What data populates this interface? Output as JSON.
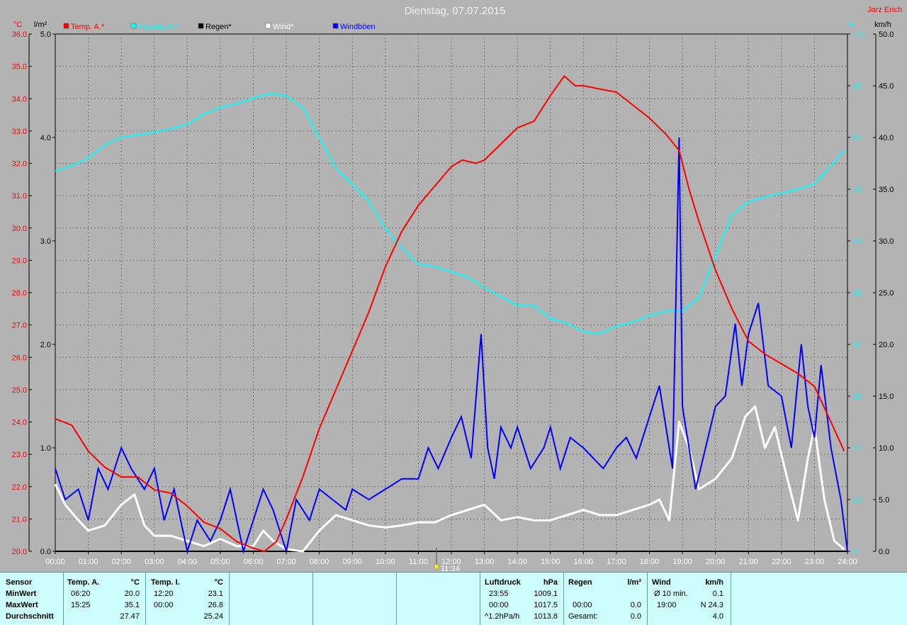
{
  "title": "Dienstag, 07.07.2015",
  "author": "Jarz Erich",
  "axes": {
    "left_temp_unit": "°C",
    "left_rain_unit": "l/m²",
    "right_pct_unit": "%",
    "right_kmh_unit": "km/h",
    "temp_ticks": [
      "20.0",
      "21.0",
      "22.0",
      "23.0",
      "24.0",
      "25.0",
      "26.0",
      "27.0",
      "28.0",
      "29.0",
      "30.0",
      "31.0",
      "32.0",
      "33.0",
      "34.0",
      "35.0",
      "36.0"
    ],
    "rain_ticks": [
      "0.0",
      "1.0",
      "2.0",
      "3.0",
      "4.0",
      "5.0"
    ],
    "pct_ticks": [
      "0",
      "10",
      "20",
      "30",
      "40",
      "50",
      "60",
      "70",
      "80",
      "90",
      "100"
    ],
    "kmh_ticks": [
      "0.0",
      "5.0",
      "10.0",
      "15.0",
      "20.0",
      "25.0",
      "30.0",
      "35.0",
      "40.0",
      "45.0",
      "50.0"
    ],
    "time_ticks": [
      "00:00",
      "01:00",
      "02:00",
      "03:00",
      "04:00",
      "05:00",
      "06:00",
      "07:00",
      "08:00",
      "09:00",
      "10:00",
      "11:00",
      "12:00",
      "13:00",
      "14:00",
      "15:00",
      "16:00",
      "17:00",
      "18:00",
      "19:00",
      "20:00",
      "21:00",
      "22:00",
      "23:00",
      "24:00"
    ],
    "marker": "11:34"
  },
  "legend": [
    {
      "label": "Temp. A.*",
      "color": "#ff0000"
    },
    {
      "label": "Feuchte A.*",
      "color": "#00ffff"
    },
    {
      "label": "Regen*",
      "color": "#000000"
    },
    {
      "label": "Wind*",
      "color": "#ffffff"
    },
    {
      "label": "Windböen",
      "color": "#0000ff"
    }
  ],
  "chart_data": {
    "type": "line",
    "title": "Dienstag, 07.07.2015",
    "x_unit": "hour",
    "xlim": [
      0,
      24
    ],
    "grid": true,
    "axes_ranges": {
      "temp_c": [
        20,
        36
      ],
      "rain_lm2": [
        0,
        5
      ],
      "humidity_pct": [
        0,
        100
      ],
      "wind_kmh": [
        0,
        50
      ]
    },
    "series": [
      {
        "name": "Temp. A.*",
        "color": "#ff0000",
        "axis": "temp_c",
        "x": [
          0,
          0.5,
          1,
          1.5,
          2,
          2.5,
          3,
          3.5,
          4,
          4.5,
          5,
          5.5,
          6,
          6.33,
          6.7,
          7,
          7.5,
          8,
          8.5,
          9,
          9.5,
          10,
          10.5,
          11,
          11.5,
          12,
          12.33,
          12.75,
          13,
          13.5,
          14,
          14.5,
          15,
          15.42,
          15.75,
          16,
          16.5,
          17,
          17.5,
          18,
          18.5,
          18.9,
          19.2,
          19.5,
          20,
          20.5,
          21,
          21.5,
          22,
          22.5,
          23,
          23.5,
          23.9
        ],
        "values": [
          24.1,
          23.9,
          23.1,
          22.6,
          22.3,
          22.3,
          21.9,
          21.8,
          21.4,
          20.9,
          20.7,
          20.3,
          20.1,
          20.0,
          20.3,
          21.0,
          22.3,
          23.8,
          25.0,
          26.2,
          27.4,
          28.8,
          29.9,
          30.7,
          31.3,
          31.9,
          32.1,
          32.0,
          32.1,
          32.6,
          33.1,
          33.3,
          34.1,
          34.7,
          34.4,
          34.4,
          34.3,
          34.2,
          33.8,
          33.4,
          32.9,
          32.4,
          31.2,
          30.2,
          28.7,
          27.5,
          26.5,
          26.1,
          25.8,
          25.5,
          25.1,
          24.0,
          23.1
        ]
      },
      {
        "name": "Feuchte A.*",
        "color": "#00ffff",
        "axis": "humidity_pct",
        "x": [
          0,
          0.5,
          1,
          1.5,
          2,
          2.5,
          3,
          3.5,
          4,
          4.5,
          5,
          5.5,
          6,
          6.5,
          7,
          7.5,
          8,
          8.5,
          9,
          9.5,
          10,
          10.5,
          11,
          11.5,
          12,
          12.5,
          13,
          13.5,
          14,
          14.5,
          15,
          15.5,
          16,
          16.5,
          17,
          17.5,
          18,
          18.5,
          19,
          19.5,
          20,
          20.5,
          21,
          21.5,
          22,
          22.5,
          23,
          23.5,
          23.9
        ],
        "values": [
          73.5,
          74.5,
          76,
          78.5,
          80,
          80.5,
          81,
          81.7,
          82.5,
          84.5,
          85.8,
          86.5,
          87.6,
          88.5,
          88,
          85.8,
          80,
          74,
          71,
          67.7,
          62.4,
          58.7,
          55.5,
          55,
          54,
          53,
          51,
          49.2,
          47.5,
          47.5,
          45,
          44.1,
          42.4,
          42.1,
          43.5,
          44.3,
          45.6,
          46.4,
          46.4,
          49,
          57,
          65,
          67.5,
          68.5,
          69.2,
          70,
          71,
          74.5,
          77.5
        ]
      },
      {
        "name": "Regen*",
        "color": "#000000",
        "axis": "rain_lm2",
        "x": [
          0,
          24
        ],
        "values": [
          0.0,
          0.0
        ]
      },
      {
        "name": "Wind*",
        "color": "#ffffff",
        "axis": "wind_kmh",
        "x": [
          0,
          0.3,
          0.7,
          1,
          1.5,
          2,
          2.4,
          2.7,
          3,
          3.5,
          4,
          4.5,
          5,
          5.5,
          6,
          6.3,
          6.6,
          7,
          7.5,
          8,
          8.5,
          9,
          9.5,
          10,
          10.5,
          11,
          11.5,
          12,
          12.5,
          13,
          13.5,
          14,
          14.5,
          15,
          15.5,
          16,
          16.5,
          17,
          17.5,
          18,
          18.3,
          18.6,
          18.9,
          19.2,
          19.5,
          20,
          20.5,
          20.9,
          21.2,
          21.5,
          21.8,
          22.1,
          22.5,
          22.8,
          23,
          23.3,
          23.6,
          23.9
        ],
        "values": [
          6.5,
          4.5,
          3,
          2,
          2.5,
          4.5,
          5.5,
          2.5,
          1.5,
          1.5,
          1,
          0.5,
          1.2,
          0.5,
          0.5,
          2,
          1,
          0.2,
          0,
          2,
          3.5,
          3,
          2.5,
          2.3,
          2.5,
          2.8,
          2.8,
          3.5,
          4,
          4.5,
          3,
          3.3,
          3,
          3,
          3.5,
          4,
          3.5,
          3.5,
          4,
          4.5,
          5,
          3,
          12.5,
          10,
          6,
          7,
          9,
          13,
          14,
          10,
          12,
          8,
          3,
          9,
          12,
          5,
          1,
          0.2
        ]
      },
      {
        "name": "Windböen",
        "color": "#0000ff",
        "axis": "wind_kmh",
        "x": [
          0,
          0.3,
          0.7,
          1,
          1.3,
          1.6,
          2,
          2.3,
          2.7,
          3,
          3.3,
          3.6,
          4,
          4.3,
          4.7,
          5,
          5.3,
          5.7,
          6,
          6.3,
          6.6,
          7,
          7.3,
          7.7,
          8,
          8.4,
          8.8,
          9,
          9.5,
          10,
          10.5,
          11,
          11.3,
          11.6,
          12,
          12.3,
          12.6,
          12.9,
          13.1,
          13.3,
          13.5,
          13.8,
          14,
          14.4,
          14.8,
          15,
          15.3,
          15.6,
          16,
          16.3,
          16.6,
          17,
          17.3,
          17.6,
          18,
          18.3,
          18.5,
          18.7,
          18.9,
          19,
          19.2,
          19.4,
          19.7,
          20,
          20.3,
          20.6,
          20.8,
          21,
          21.3,
          21.6,
          22,
          22.3,
          22.6,
          22.8,
          23,
          23.2,
          23.5,
          23.8,
          24
        ],
        "values": [
          8,
          5,
          6,
          3,
          8,
          6,
          10,
          8,
          6,
          8,
          3,
          6,
          0,
          3,
          1,
          3,
          6,
          0,
          3,
          6,
          4,
          0,
          5,
          3,
          6,
          5,
          4,
          6,
          5,
          6,
          7,
          7,
          10,
          8,
          11,
          13,
          9,
          21,
          10,
          7,
          12,
          10,
          12,
          8,
          10,
          12,
          8,
          11,
          10,
          9,
          8,
          10,
          11,
          9,
          13,
          16,
          12,
          8,
          40,
          14,
          10,
          6,
          10,
          14,
          15,
          22,
          16,
          21,
          24,
          16,
          15,
          10,
          20,
          14,
          11,
          18,
          10,
          5,
          0
        ]
      }
    ],
    "sensor_table": {
      "rows": [
        "Sensor",
        "MinWert",
        "MaxWert",
        "Durchschnitt"
      ],
      "temp_a": {
        "header": "Temp. A.",
        "unit": "°C",
        "min_time": "06:20",
        "min": "20.0",
        "max_time": "15:25",
        "max": "35.1",
        "avg": "27.47"
      },
      "temp_i": {
        "header": "Temp. I.",
        "unit": "°C",
        "min_time": "12:20",
        "min": "23.1",
        "max_time": "00:00",
        "max": "26.8",
        "avg": "25.24"
      },
      "luftdruck": {
        "header": "Luftdruck",
        "unit": "hPa",
        "min_time": "23:55",
        "min": "1009.1",
        "max_time": "00:00",
        "max": "1017.5",
        "trend_label": "^1.2hPa/h",
        "avg": "1013.8"
      },
      "regen": {
        "header": "Regen",
        "unit": "l/m²",
        "time": "00:00",
        "value": "0.0",
        "total_label": "Gesamt:",
        "total": "0.0"
      },
      "wind": {
        "header": "Wind",
        "unit": "km/h",
        "avg10_label": "Ø 10 min.",
        "avg10": "0.1",
        "max_time": "19:00",
        "max": "N 24.3",
        "avg": "4.0"
      }
    }
  }
}
